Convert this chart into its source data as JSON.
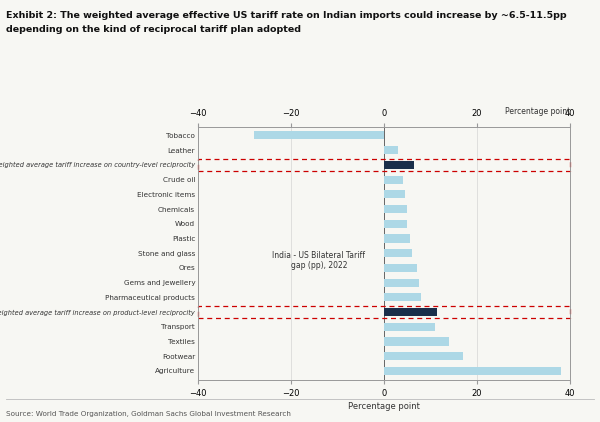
{
  "title_line1": "Exhibit 2: The weighted average effective US tariff rate on Indian imports could increase by ~6.5-11.5pp",
  "title_line2": "depending on the kind of reciprocal tariff plan adopted",
  "source": "Source: World Trade Organization, Goldman Sachs Global Investment Research",
  "xlabel": "Percentage point",
  "xlim": [
    -40,
    40
  ],
  "xticks": [
    -40,
    -20,
    0,
    20,
    40
  ],
  "categories": [
    "Tobacco",
    "Leather",
    "Weighted average tariff increase on country-level reciprocity",
    "Crude oil",
    "Electronic items",
    "Chemicals",
    "Wood",
    "Plastic",
    "Stone and glass",
    "Ores",
    "Gems and Jewellery",
    "Pharmaceutical products",
    "Weighted average tariff increase on product-level reciprocity",
    "Transport",
    "Textiles",
    "Footwear",
    "Agriculture"
  ],
  "values": [
    -28,
    3,
    6.5,
    4,
    4.5,
    5,
    5,
    5.5,
    6,
    7,
    7.5,
    8,
    11.5,
    11,
    14,
    17,
    38
  ],
  "bar_colors": [
    "#add8e6",
    "#add8e6",
    "#1a2e4a",
    "#add8e6",
    "#add8e6",
    "#add8e6",
    "#add8e6",
    "#add8e6",
    "#add8e6",
    "#add8e6",
    "#add8e6",
    "#add8e6",
    "#1a2e4a",
    "#add8e6",
    "#add8e6",
    "#add8e6",
    "#add8e6"
  ],
  "highlighted_indices": [
    2,
    12
  ],
  "annotation_text": "India - US Bilateral Tariff\ngap (pp), 2022",
  "bg_color": "#f7f7f3",
  "spine_color": "#999999",
  "grid_color": "#cccccc"
}
